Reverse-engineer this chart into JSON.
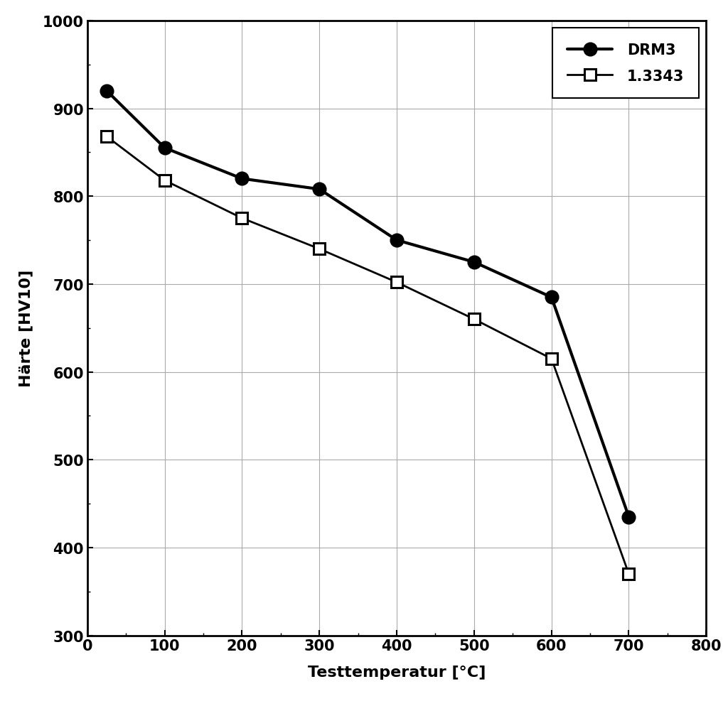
{
  "xlabel": "Testtemperatur [°C]",
  "ylabel": "Härte [HV10]",
  "drm3_x": [
    25,
    100,
    200,
    300,
    400,
    500,
    600,
    700
  ],
  "drm3_y": [
    920,
    855,
    820,
    808,
    750,
    725,
    685,
    435
  ],
  "ref_x": [
    25,
    100,
    200,
    300,
    400,
    500,
    600,
    700
  ],
  "ref_y": [
    868,
    818,
    775,
    740,
    702,
    660,
    615,
    370
  ],
  "drm3_label": "DRM3",
  "ref_label": "1.3343",
  "xlim": [
    0,
    800
  ],
  "ylim": [
    300,
    1000
  ],
  "xticks": [
    0,
    100,
    200,
    300,
    400,
    500,
    600,
    700,
    800
  ],
  "yticks": [
    300,
    400,
    500,
    600,
    700,
    800,
    900,
    1000
  ],
  "line_color": "#000000",
  "bg_color": "#ffffff",
  "grid_color": "#aaaaaa",
  "drm3_linewidth": 3.0,
  "ref_linewidth": 2.0,
  "marker_size_circle": 13,
  "marker_size_square": 11,
  "axis_label_fontsize": 16,
  "tick_fontsize": 15,
  "legend_fontsize": 15,
  "figsize": [
    10.24,
    9.95
  ],
  "dpi": 100
}
